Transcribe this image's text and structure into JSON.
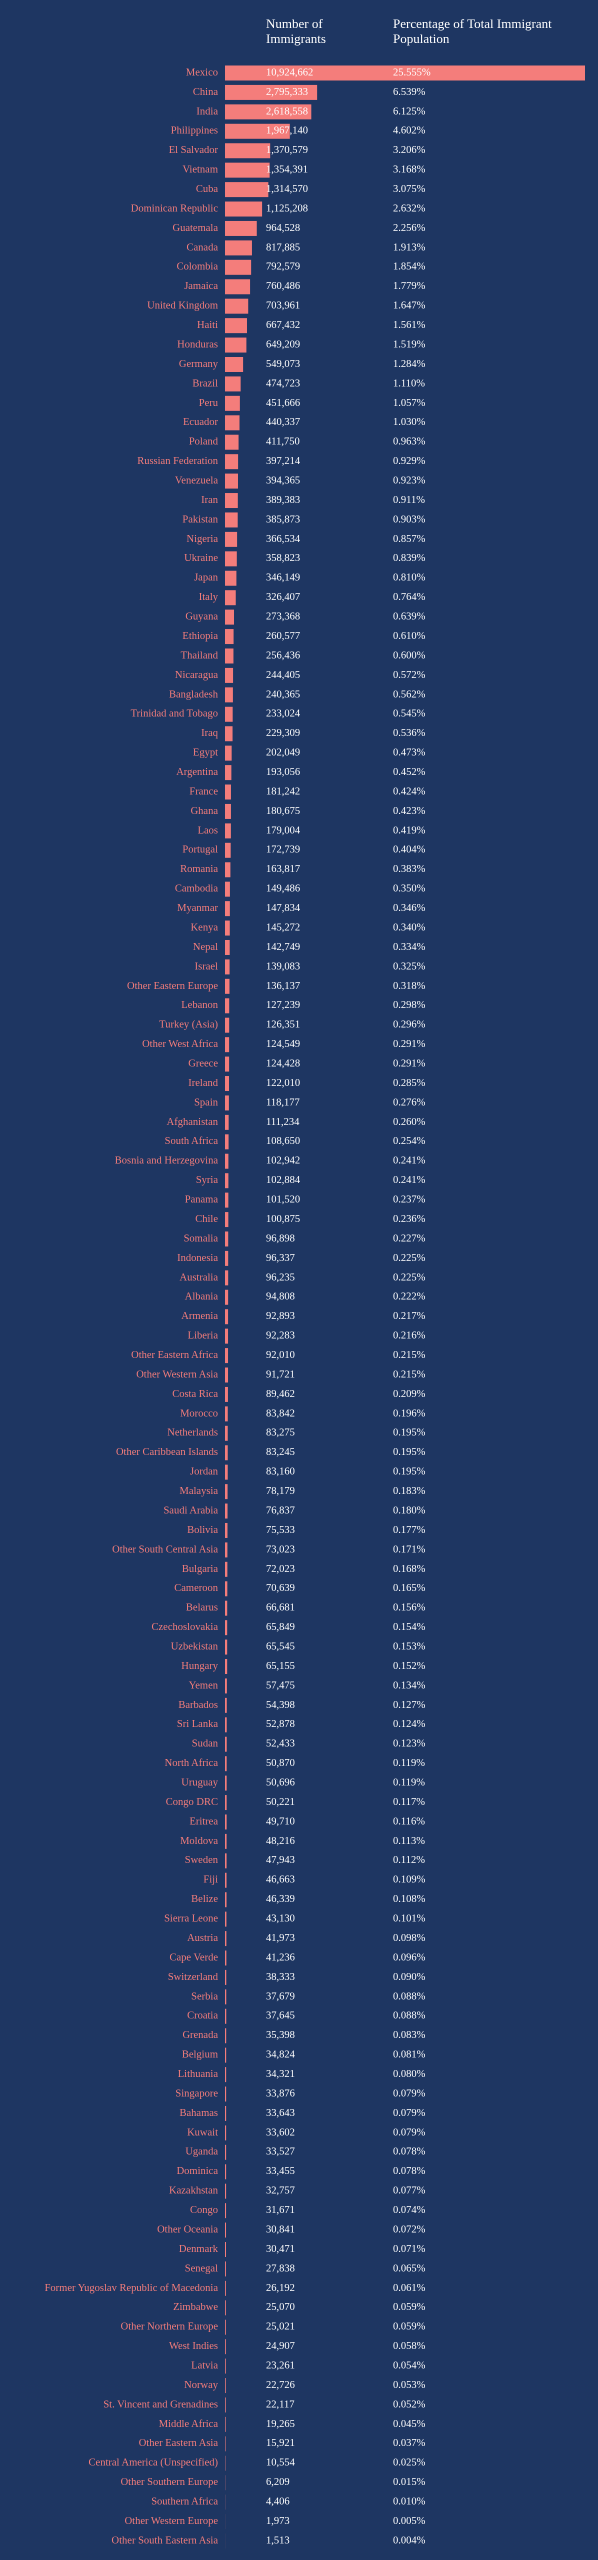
{
  "chart_data": {
    "type": "bar",
    "orientation": "horizontal",
    "categories": [
      "Mexico",
      "China",
      "India",
      "Philippines",
      "El Salvador",
      "Vietnam",
      "Cuba",
      "Dominican Republic",
      "Guatemala",
      "Canada",
      "Colombia",
      "Jamaica",
      "United Kingdom",
      "Haiti",
      "Honduras",
      "Germany",
      "Brazil",
      "Peru",
      "Ecuador",
      "Poland",
      "Russian Federation",
      "Venezuela",
      "Iran",
      "Pakistan",
      "Nigeria",
      "Ukraine",
      "Japan",
      "Italy",
      "Guyana",
      "Ethiopia",
      "Thailand",
      "Nicaragua",
      "Bangladesh",
      "Trinidad and Tobago",
      "Iraq",
      "Egypt",
      "Argentina",
      "France",
      "Ghana",
      "Laos",
      "Portugal",
      "Romania",
      "Cambodia",
      "Myanmar",
      "Kenya",
      "Nepal",
      "Israel",
      "Other Eastern Europe",
      "Lebanon",
      "Turkey (Asia)",
      "Other West Africa",
      "Greece",
      "Ireland",
      "Spain",
      "Afghanistan",
      "South Africa",
      "Bosnia and Herzegovina",
      "Syria",
      "Panama",
      "Chile",
      "Somalia",
      "Indonesia",
      "Australia",
      "Albania",
      "Armenia",
      "Liberia",
      "Other Eastern Africa",
      "Other Western Asia",
      "Costa Rica",
      "Morocco",
      "Netherlands",
      "Other Caribbean Islands",
      "Jordan",
      "Malaysia",
      "Saudi Arabia",
      "Bolivia",
      "Other South Central Asia",
      "Bulgaria",
      "Cameroon",
      "Belarus",
      "Czechoslovakia",
      "Uzbekistan",
      "Hungary",
      "Yemen",
      "Barbados",
      "Sri Lanka",
      "Sudan",
      "North Africa",
      "Uruguay",
      "Congo DRC",
      "Eritrea",
      "Moldova",
      "Sweden",
      "Fiji",
      "Belize",
      "Sierra Leone",
      "Austria",
      "Cape Verde",
      "Switzerland",
      "Serbia",
      "Croatia",
      "Grenada",
      "Belgium",
      "Lithuania",
      "Singapore",
      "Bahamas",
      "Kuwait",
      "Uganda",
      "Dominica",
      "Kazakhstan",
      "Congo",
      "Other Oceania",
      "Denmark",
      "Senegal",
      "Former Yugoslav Republic of Macedonia",
      "Zimbabwe",
      "Other Northern Europe",
      "West Indies",
      "Latvia",
      "Norway",
      "St. Vincent and Grenadines",
      "Middle Africa",
      "Other Eastern Asia",
      "Central America (Unspecified)",
      "Other Southern Europe",
      "Southern Africa",
      "Other Western Europe",
      "Other South Eastern Asia"
    ],
    "series": [
      {
        "name": "Number of Immigrants",
        "color": "#f47d7b",
        "values": [
          10924662,
          2795333,
          2618558,
          1967140,
          1370579,
          1354391,
          1314570,
          1125208,
          964528,
          817885,
          792579,
          760486,
          703961,
          667432,
          649209,
          549073,
          474723,
          451666,
          440337,
          411750,
          397214,
          394365,
          389383,
          385873,
          366534,
          358823,
          346149,
          326407,
          273368,
          260577,
          256436,
          244405,
          240365,
          233024,
          229309,
          202049,
          193056,
          181242,
          180675,
          179004,
          172739,
          163817,
          149486,
          147834,
          145272,
          142749,
          139083,
          136137,
          127239,
          126351,
          124549,
          124428,
          122010,
          118177,
          111234,
          108650,
          102942,
          102884,
          101520,
          100875,
          96898,
          96337,
          96235,
          94808,
          92893,
          92283,
          92010,
          91721,
          89462,
          83842,
          83275,
          83245,
          83160,
          78179,
          76837,
          75533,
          73023,
          72023,
          70639,
          66681,
          65849,
          65545,
          65155,
          57475,
          54398,
          52878,
          52433,
          50870,
          50696,
          50221,
          49710,
          48216,
          47943,
          46663,
          46339,
          43130,
          41973,
          41236,
          38333,
          37679,
          37645,
          35398,
          34824,
          34321,
          33876,
          33643,
          33602,
          33527,
          33455,
          32757,
          31671,
          30841,
          30471,
          27838,
          26192,
          25070,
          25021,
          24907,
          23261,
          22726,
          22117,
          19265,
          15921,
          10554,
          6209,
          4406,
          1973,
          1513
        ],
        "value_labels": [
          "10,924,662",
          "2,795,333",
          "2,618,558",
          "1,967,140",
          "1,370,579",
          "1,354,391",
          "1,314,570",
          "1,125,208",
          "964,528",
          "817,885",
          "792,579",
          "760,486",
          "703,961",
          "667,432",
          "649,209",
          "549,073",
          "474,723",
          "451,666",
          "440,337",
          "411,750",
          "397,214",
          "394,365",
          "389,383",
          "385,873",
          "366,534",
          "358,823",
          "346,149",
          "326,407",
          "273,368",
          "260,577",
          "256,436",
          "244,405",
          "240,365",
          "233,024",
          "229,309",
          "202,049",
          "193,056",
          "181,242",
          "180,675",
          "179,004",
          "172,739",
          "163,817",
          "149,486",
          "147,834",
          "145,272",
          "142,749",
          "139,083",
          "136,137",
          "127,239",
          "126,351",
          "124,549",
          "124,428",
          "122,010",
          "118,177",
          "111,234",
          "108,650",
          "102,942",
          "102,884",
          "101,520",
          "100,875",
          "96,898",
          "96,337",
          "96,235",
          "94,808",
          "92,893",
          "92,283",
          "92,010",
          "91,721",
          "89,462",
          "83,842",
          "83,275",
          "83,245",
          "83,160",
          "78,179",
          "76,837",
          "75,533",
          "73,023",
          "72,023",
          "70,639",
          "66,681",
          "65,849",
          "65,545",
          "65,155",
          "57,475",
          "54,398",
          "52,878",
          "52,433",
          "50,870",
          "50,696",
          "50,221",
          "49,710",
          "48,216",
          "47,943",
          "46,663",
          "46,339",
          "43,130",
          "41,973",
          "41,236",
          "38,333",
          "37,679",
          "37,645",
          "35,398",
          "34,824",
          "34,321",
          "33,876",
          "33,643",
          "33,602",
          "33,527",
          "33,455",
          "32,757",
          "31,671",
          "30,841",
          "30,471",
          "27,838",
          "26,192",
          "25,070",
          "25,021",
          "24,907",
          "23,261",
          "22,726",
          "22,117",
          "19,265",
          "15,921",
          "10,554",
          "6,209",
          "4,406",
          "1,973",
          "1,513"
        ]
      },
      {
        "name": "Percentage of Total Immigrant Population",
        "values": [
          25.555,
          6.539,
          6.125,
          4.602,
          3.206,
          3.168,
          3.075,
          2.632,
          2.256,
          1.913,
          1.854,
          1.779,
          1.647,
          1.561,
          1.519,
          1.284,
          1.11,
          1.057,
          1.03,
          0.963,
          0.929,
          0.923,
          0.911,
          0.903,
          0.857,
          0.839,
          0.81,
          0.764,
          0.639,
          0.61,
          0.6,
          0.572,
          0.562,
          0.545,
          0.536,
          0.473,
          0.452,
          0.424,
          0.423,
          0.419,
          0.404,
          0.383,
          0.35,
          0.346,
          0.34,
          0.334,
          0.325,
          0.318,
          0.298,
          0.296,
          0.291,
          0.291,
          0.285,
          0.276,
          0.26,
          0.254,
          0.241,
          0.241,
          0.237,
          0.236,
          0.227,
          0.225,
          0.225,
          0.222,
          0.217,
          0.216,
          0.215,
          0.215,
          0.209,
          0.196,
          0.195,
          0.195,
          0.195,
          0.183,
          0.18,
          0.177,
          0.171,
          0.168,
          0.165,
          0.156,
          0.154,
          0.153,
          0.152,
          0.134,
          0.127,
          0.124,
          0.123,
          0.119,
          0.119,
          0.117,
          0.116,
          0.113,
          0.112,
          0.109,
          0.108,
          0.101,
          0.098,
          0.096,
          0.09,
          0.088,
          0.088,
          0.083,
          0.081,
          0.08,
          0.079,
          0.079,
          0.079,
          0.078,
          0.078,
          0.077,
          0.074,
          0.072,
          0.071,
          0.065,
          0.061,
          0.059,
          0.059,
          0.058,
          0.054,
          0.053,
          0.052,
          0.045,
          0.037,
          0.025,
          0.015,
          0.01,
          0.005,
          0.004
        ],
        "value_labels": [
          "25.555%",
          "6.539%",
          "6.125%",
          "4.602%",
          "3.206%",
          "3.168%",
          "3.075%",
          "2.632%",
          "2.256%",
          "1.913%",
          "1.854%",
          "1.779%",
          "1.647%",
          "1.561%",
          "1.519%",
          "1.284%",
          "1.110%",
          "1.057%",
          "1.030%",
          "0.963%",
          "0.929%",
          "0.923%",
          "0.911%",
          "0.903%",
          "0.857%",
          "0.839%",
          "0.810%",
          "0.764%",
          "0.639%",
          "0.610%",
          "0.600%",
          "0.572%",
          "0.562%",
          "0.545%",
          "0.536%",
          "0.473%",
          "0.452%",
          "0.424%",
          "0.423%",
          "0.419%",
          "0.404%",
          "0.383%",
          "0.350%",
          "0.346%",
          "0.340%",
          "0.334%",
          "0.325%",
          "0.318%",
          "0.298%",
          "0.296%",
          "0.291%",
          "0.291%",
          "0.285%",
          "0.276%",
          "0.260%",
          "0.254%",
          "0.241%",
          "0.241%",
          "0.237%",
          "0.236%",
          "0.227%",
          "0.225%",
          "0.225%",
          "0.222%",
          "0.217%",
          "0.216%",
          "0.215%",
          "0.215%",
          "0.209%",
          "0.196%",
          "0.195%",
          "0.195%",
          "0.195%",
          "0.183%",
          "0.180%",
          "0.177%",
          "0.171%",
          "0.168%",
          "0.165%",
          "0.156%",
          "0.154%",
          "0.153%",
          "0.152%",
          "0.134%",
          "0.127%",
          "0.124%",
          "0.123%",
          "0.119%",
          "0.119%",
          "0.117%",
          "0.116%",
          "0.113%",
          "0.112%",
          "0.109%",
          "0.108%",
          "0.101%",
          "0.098%",
          "0.096%",
          "0.090%",
          "0.088%",
          "0.088%",
          "0.083%",
          "0.081%",
          "0.080%",
          "0.079%",
          "0.079%",
          "0.079%",
          "0.078%",
          "0.078%",
          "0.077%",
          "0.074%",
          "0.072%",
          "0.071%",
          "0.065%",
          "0.061%",
          "0.059%",
          "0.059%",
          "0.058%",
          "0.054%",
          "0.053%",
          "0.052%",
          "0.045%",
          "0.037%",
          "0.025%",
          "0.015%",
          "0.010%",
          "0.005%",
          "0.004%"
        ]
      }
    ]
  }
}
